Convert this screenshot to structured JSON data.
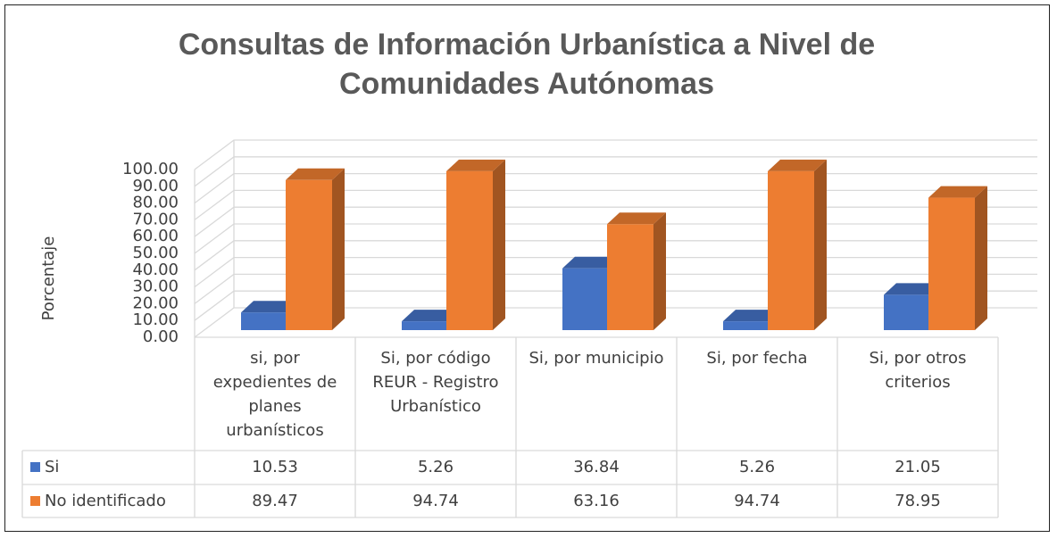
{
  "chart_data": {
    "type": "bar3d",
    "title": "Consultas de Información Urbanística a Nivel de Comunidades Autónomas",
    "y_label": "Porcentaje",
    "categories": [
      "si, por expedientes de planes urbanísticos",
      "Si, por código REUR - Registro Urbanístico",
      "Si, por municipio",
      "Si, por fecha",
      "Si, por otros criterios"
    ],
    "series": [
      {
        "name": "Si",
        "color": "#4472c4",
        "values": [
          10.53,
          5.26,
          36.84,
          5.26,
          21.05
        ]
      },
      {
        "name": "No identificado",
        "color": "#ed7d31",
        "values": [
          89.47,
          94.74,
          63.16,
          94.74,
          78.95
        ]
      }
    ],
    "ylim": [
      0,
      100
    ],
    "yticks": [
      {
        "value": 0,
        "label": "0.00"
      },
      {
        "value": 10,
        "label": "10.00"
      },
      {
        "value": 20,
        "label": "20.00"
      },
      {
        "value": 30,
        "label": "30.00"
      },
      {
        "value": 40,
        "label": "40.00"
      },
      {
        "value": 50,
        "label": "50.00"
      },
      {
        "value": 60,
        "label": "60.00"
      },
      {
        "value": 70,
        "label": "70.00"
      },
      {
        "value": 80,
        "label": "80.00"
      },
      {
        "value": 90,
        "label": "90.00"
      },
      {
        "value": 100,
        "label": "100.00"
      }
    ],
    "grid": true,
    "data_table": true
  }
}
